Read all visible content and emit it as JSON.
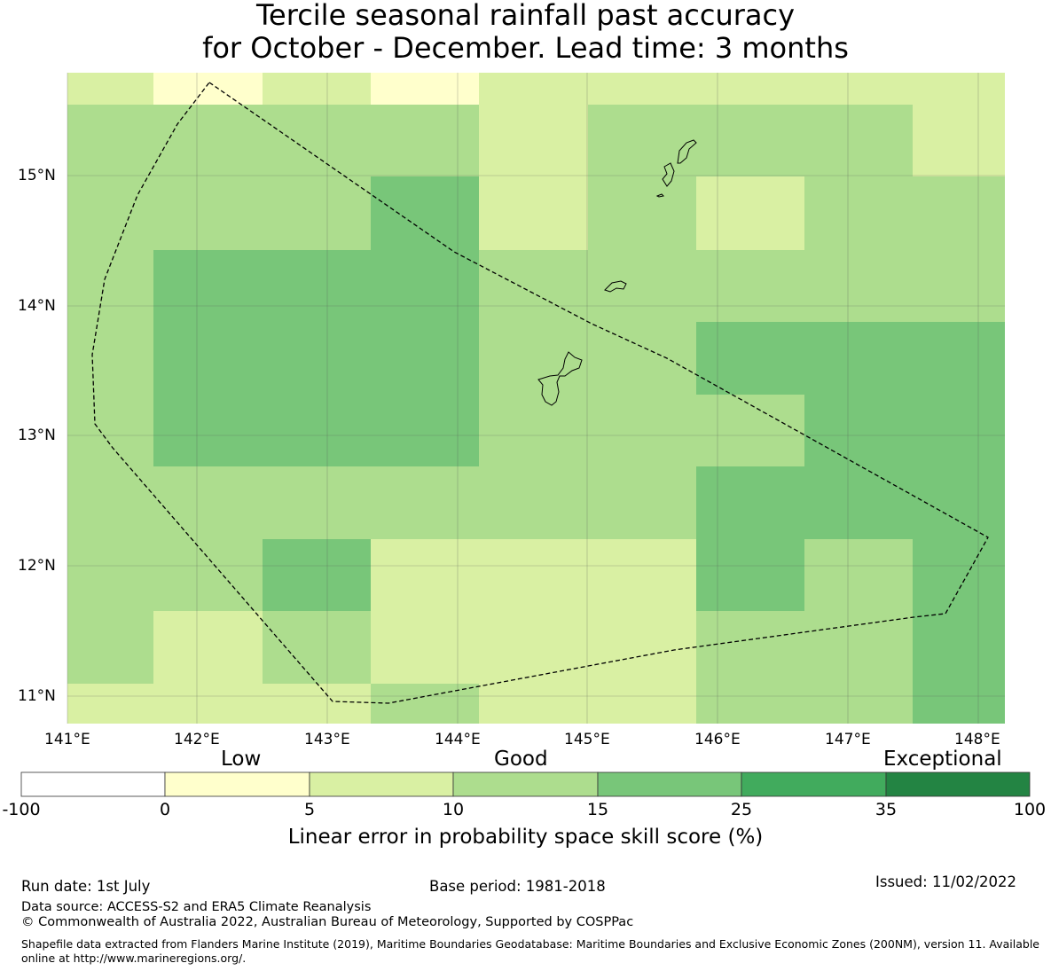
{
  "title_line1": "Tercile seasonal rainfall past accuracy",
  "title_line2": "for October - December. Lead time: 3 months",
  "map": {
    "region_outline": "dashed EEZ boundary",
    "lon_labels": [
      "141°E",
      "142°E",
      "143°E",
      "144°E",
      "145°E",
      "146°E",
      "147°E",
      "148°E"
    ],
    "lat_labels": [
      "15°N",
      "14°N",
      "13°N",
      "12°N",
      "11°N"
    ],
    "grid_colors": [
      "#ffffcc",
      "#d9f0a3",
      "#addd8e",
      "#78c679"
    ],
    "cell_category_grid": [
      [
        1,
        0,
        1,
        0,
        1,
        1,
        1,
        1,
        1
      ],
      [
        2,
        2,
        2,
        2,
        1,
        2,
        2,
        2,
        1
      ],
      [
        2,
        2,
        2,
        3,
        1,
        2,
        1,
        2,
        2
      ],
      [
        2,
        3,
        3,
        3,
        2,
        2,
        2,
        2,
        2
      ],
      [
        2,
        3,
        3,
        3,
        2,
        2,
        3,
        3,
        3
      ],
      [
        2,
        3,
        3,
        3,
        2,
        2,
        2,
        3,
        3
      ],
      [
        2,
        2,
        2,
        2,
        2,
        2,
        3,
        3,
        3
      ],
      [
        2,
        2,
        3,
        1,
        1,
        1,
        3,
        2,
        3
      ],
      [
        2,
        1,
        2,
        1,
        1,
        1,
        2,
        2,
        3
      ],
      [
        1,
        1,
        1,
        2,
        1,
        1,
        2,
        2,
        3
      ]
    ]
  },
  "colorbar": {
    "category_words": [
      "Low",
      "Good",
      "Exceptional"
    ],
    "ticks": [
      "-100",
      "0",
      "5",
      "10",
      "15",
      "25",
      "35",
      "100"
    ],
    "colors": [
      "#ffffff",
      "#ffffcc",
      "#d9f0a3",
      "#addd8e",
      "#78c679",
      "#41ab5d",
      "#238443"
    ],
    "label": "Linear error in probability space skill score (%)"
  },
  "footer": {
    "run_date": "Run date: 1st July",
    "base_period": "Base period: 1981-2018",
    "issued": "Issued: 11/02/2022",
    "data_source": "Data source: ACCESS-S2 and ERA5 Climate Reanalysis",
    "copyright": "© Commonwealth of Australia 2022, Australian Bureau of Meteorology, Supported by COSPPac",
    "shapefile_note": "Shapefile data extracted from Flanders Marine Institute (2019), Maritime Boundaries Geodatabase: Maritime Boundaries and Exclusive Economic Zones (200NM), version 11. Available online at http://www.marineregions.org/."
  }
}
